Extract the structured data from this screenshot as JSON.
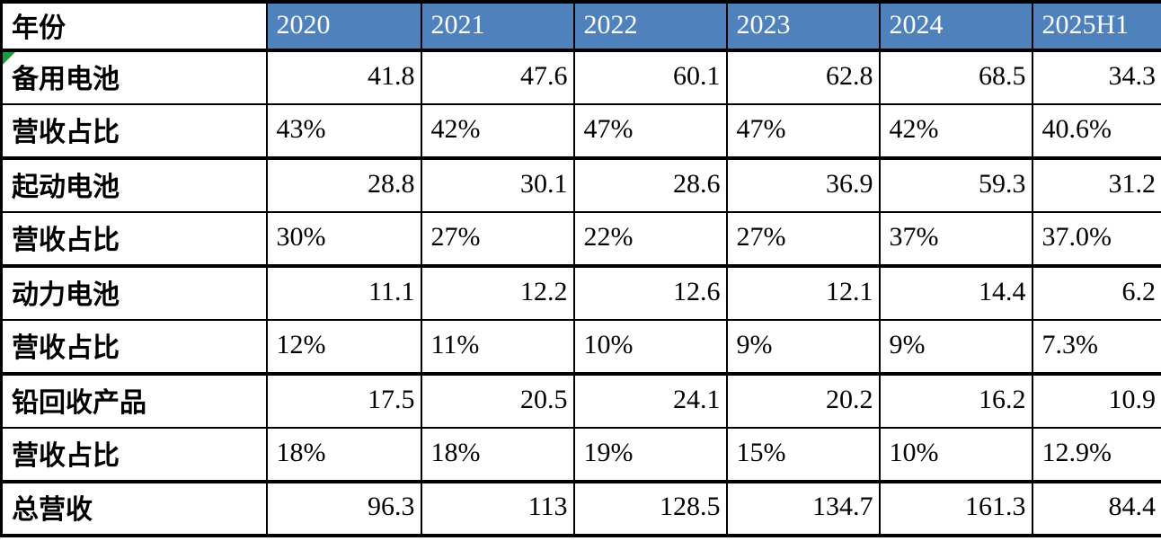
{
  "table": {
    "unit_note": "",
    "header": {
      "label": "年份",
      "years": [
        "2020",
        "2021",
        "2022",
        "2023",
        "2024",
        "2025H1"
      ]
    },
    "rows": [
      {
        "label": "备用电池",
        "type": "value",
        "flag": true,
        "values": [
          "41.8",
          "47.6",
          "60.1",
          "62.8",
          "68.5",
          "34.3"
        ]
      },
      {
        "label": "营收占比",
        "type": "percent",
        "flag": false,
        "values": [
          "43%",
          "42%",
          "47%",
          "47%",
          "42%",
          "40.6%"
        ]
      },
      {
        "label": "起动电池",
        "type": "value",
        "flag": false,
        "values": [
          "28.8",
          "30.1",
          "28.6",
          "36.9",
          "59.3",
          "31.2"
        ]
      },
      {
        "label": "营收占比",
        "type": "percent",
        "flag": false,
        "values": [
          "30%",
          "27%",
          "22%",
          "27%",
          "37%",
          "37.0%"
        ]
      },
      {
        "label": "动力电池",
        "type": "value",
        "flag": false,
        "values": [
          "11.1",
          "12.2",
          "12.6",
          "12.1",
          "14.4",
          "6.2"
        ]
      },
      {
        "label": "营收占比",
        "type": "percent",
        "flag": false,
        "values": [
          "12%",
          "11%",
          "10%",
          "9%",
          "9%",
          "7.3%"
        ]
      },
      {
        "label": "铅回收产品",
        "type": "value",
        "flag": false,
        "values": [
          "17.5",
          "20.5",
          "24.1",
          "20.2",
          "16.2",
          "10.9"
        ]
      },
      {
        "label": "营收占比",
        "type": "percent",
        "flag": false,
        "values": [
          "18%",
          "18%",
          "19%",
          "15%",
          "10%",
          "12.9%"
        ]
      },
      {
        "label": "总营收",
        "type": "value",
        "flag": false,
        "values": [
          "96.3",
          "113",
          "128.5",
          "134.7",
          "161.3",
          "84.4"
        ]
      }
    ],
    "colors": {
      "header_bg": "#4F81BD",
      "header_text": "#FFFFFF",
      "border": "#000000",
      "flag_green": "#1E9B3C"
    }
  }
}
